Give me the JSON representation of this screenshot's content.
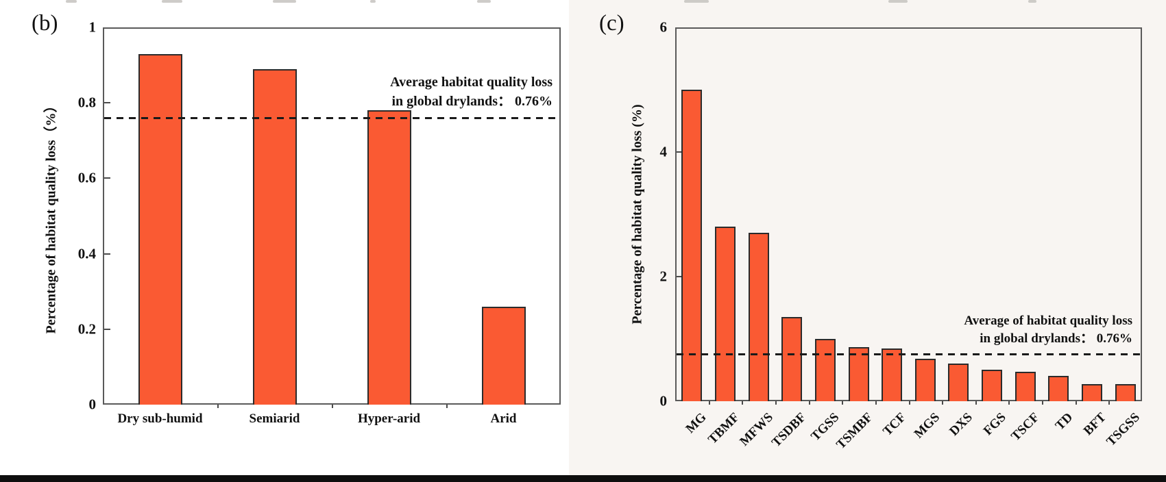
{
  "chart_data": [
    {
      "type": "bar",
      "panel_label": "(b)",
      "ylabel": "Percentage of habitat quality loss（%）",
      "categories": [
        "Dry sub-humid",
        "Semiarid",
        "Hyper-arid",
        "Arid"
      ],
      "values": [
        0.93,
        0.89,
        0.78,
        0.26
      ],
      "yticks": [
        "0",
        "0.2",
        "0.4",
        "0.6",
        "0.8",
        "1"
      ],
      "ylim": [
        0,
        1
      ],
      "grid": false,
      "legend": "none",
      "bar_color": "#FA5A33",
      "bar_edge_color": "#2B2B2B",
      "reference_line": {
        "value": 0.76,
        "style": "dashed",
        "color": "#1A1A1A",
        "label_line1": "Average habitat quality loss",
        "label_line2": "in global drylands： 0.76%"
      }
    },
    {
      "type": "bar",
      "panel_label": "(c)",
      "ylabel": "Percentage of habitat quality loss (%)",
      "categories": [
        "MG",
        "TBMF",
        "MFWS",
        "TSDBF",
        "TGSS",
        "TSMBF",
        "TCF",
        "MGS",
        "DXS",
        "FGS",
        "TSCF",
        "TD",
        "BFT",
        "TSGSS"
      ],
      "values": [
        5.0,
        2.8,
        2.7,
        1.35,
        1.0,
        0.87,
        0.85,
        0.68,
        0.6,
        0.5,
        0.47,
        0.41,
        0.28,
        0.28
      ],
      "yticks": [
        "0",
        "2",
        "4",
        "6"
      ],
      "ylim": [
        0,
        6
      ],
      "grid": false,
      "legend": "none",
      "bar_color": "#FA5A33",
      "bar_edge_color": "#2B2B2B",
      "reference_line": {
        "value": 0.76,
        "style": "dashed",
        "color": "#1A1A1A",
        "label_line1": "Average of habitat quality loss",
        "label_line2": "in global drylands： 0.76%"
      }
    }
  ]
}
